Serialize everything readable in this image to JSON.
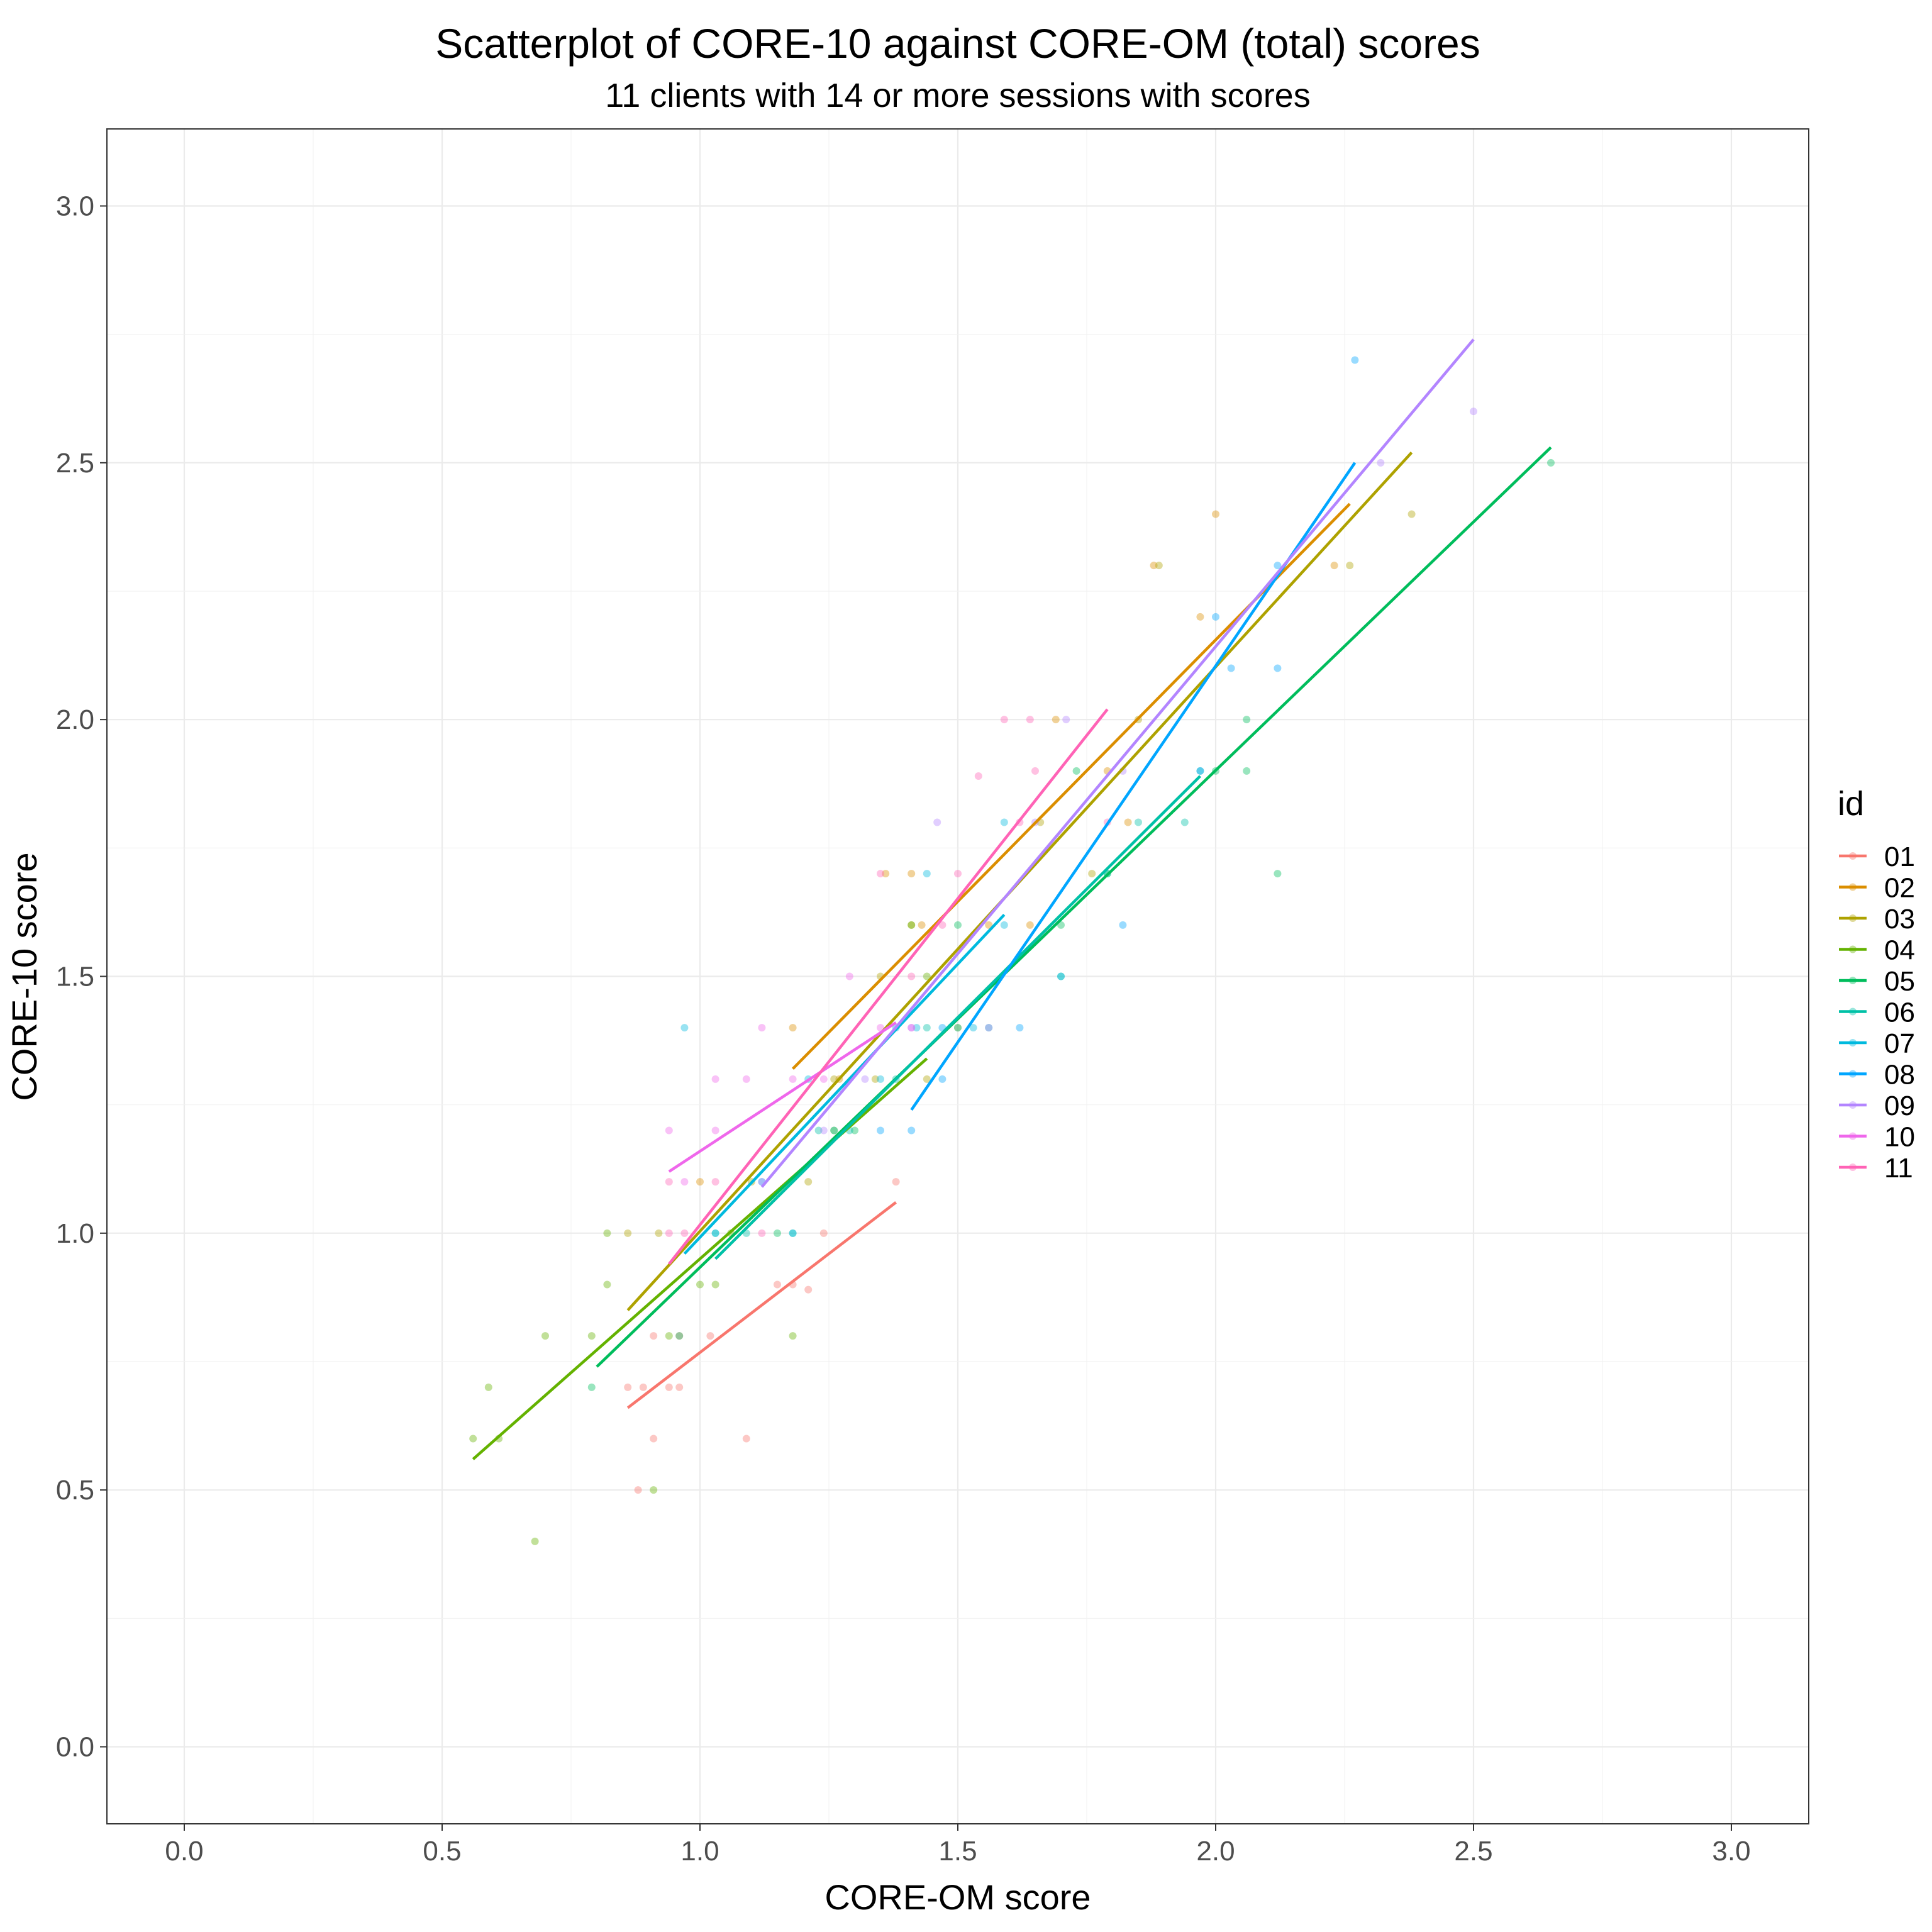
{
  "chart_data": {
    "type": "scatter",
    "title": "Scatterplot of CORE-10 against CORE-OM (total) scores",
    "subtitle": "11 clients with 14 or more sessions with scores",
    "xlabel": "CORE-OM score",
    "ylabel": "CORE-10 score",
    "xlim": [
      -0.15,
      3.15
    ],
    "ylim": [
      -0.15,
      3.15
    ],
    "x_ticks": [
      0.0,
      0.5,
      1.0,
      1.5,
      2.0,
      2.5,
      3.0
    ],
    "x_tick_labels": [
      "0.0",
      "0.5",
      "1.0",
      "1.5",
      "2.0",
      "2.5",
      "3.0"
    ],
    "y_ticks": [
      0.0,
      0.5,
      1.0,
      1.5,
      2.0,
      2.5,
      3.0
    ],
    "y_tick_labels": [
      "0.0",
      "0.5",
      "1.0",
      "1.5",
      "2.0",
      "2.5",
      "3.0"
    ],
    "grid": true,
    "legend": {
      "title": "id",
      "placement": "right"
    },
    "series": [
      {
        "name": "01",
        "color": "#F8766D",
        "line": [
          [
            0.86,
            0.66
          ],
          [
            1.38,
            1.06
          ]
        ],
        "points": [
          [
            0.86,
            0.7
          ],
          [
            0.88,
            0.5
          ],
          [
            0.89,
            0.7
          ],
          [
            0.91,
            0.6
          ],
          [
            0.91,
            0.8
          ],
          [
            0.94,
            0.7
          ],
          [
            0.96,
            0.7
          ],
          [
            0.96,
            0.8
          ],
          [
            1.02,
            0.8
          ],
          [
            1.09,
            0.6
          ],
          [
            1.15,
            0.9
          ],
          [
            1.18,
            0.9
          ],
          [
            1.21,
            0.89
          ],
          [
            1.24,
            1.0
          ],
          [
            1.38,
            1.1
          ]
        ]
      },
      {
        "name": "02",
        "color": "#DB8E00",
        "line": [
          [
            1.18,
            1.32
          ],
          [
            2.26,
            2.42
          ]
        ],
        "points": [
          [
            1.0,
            1.1
          ],
          [
            1.18,
            1.4
          ],
          [
            1.27,
            1.3
          ],
          [
            1.36,
            1.7
          ],
          [
            1.41,
            1.7
          ],
          [
            1.43,
            1.6
          ],
          [
            1.56,
            1.6
          ],
          [
            1.64,
            1.6
          ],
          [
            1.69,
            2.0
          ],
          [
            1.79,
            1.9
          ],
          [
            1.83,
            1.8
          ],
          [
            1.88,
            2.3
          ],
          [
            1.97,
            2.2
          ],
          [
            2.0,
            2.4
          ],
          [
            2.23,
            2.3
          ]
        ]
      },
      {
        "name": "03",
        "color": "#AEA200",
        "line": [
          [
            0.86,
            0.85
          ],
          [
            2.38,
            2.52
          ]
        ],
        "points": [
          [
            0.86,
            1.0
          ],
          [
            0.92,
            1.0
          ],
          [
            1.1,
            1.1
          ],
          [
            1.21,
            1.1
          ],
          [
            1.26,
            1.3
          ],
          [
            1.34,
            1.3
          ],
          [
            1.35,
            1.5
          ],
          [
            1.41,
            1.6
          ],
          [
            1.44,
            1.3
          ],
          [
            1.5,
            1.4
          ],
          [
            1.66,
            1.8
          ],
          [
            1.76,
            1.7
          ],
          [
            1.85,
            2.0
          ],
          [
            1.89,
            2.3
          ],
          [
            2.26,
            2.3
          ],
          [
            2.38,
            2.4
          ]
        ]
      },
      {
        "name": "04",
        "color": "#64B200",
        "line": [
          [
            0.56,
            0.56
          ],
          [
            1.44,
            1.34
          ]
        ],
        "points": [
          [
            0.56,
            0.6
          ],
          [
            0.59,
            0.7
          ],
          [
            0.61,
            0.6
          ],
          [
            0.68,
            0.4
          ],
          [
            0.7,
            0.8
          ],
          [
            0.79,
            0.8
          ],
          [
            0.82,
            1.0
          ],
          [
            0.82,
            0.9
          ],
          [
            0.91,
            0.5
          ],
          [
            0.94,
            0.8
          ],
          [
            1.0,
            0.9
          ],
          [
            1.03,
            0.9
          ],
          [
            1.06,
            1.0
          ],
          [
            1.18,
            0.8
          ],
          [
            1.26,
            1.2
          ],
          [
            1.41,
            1.6
          ],
          [
            1.44,
            1.5
          ]
        ]
      },
      {
        "name": "05",
        "color": "#00BD5C",
        "line": [
          [
            0.8,
            0.74
          ],
          [
            2.65,
            2.53
          ]
        ],
        "points": [
          [
            0.79,
            0.7
          ],
          [
            0.96,
            0.8
          ],
          [
            1.15,
            1.0
          ],
          [
            1.3,
            1.2
          ],
          [
            1.5,
            1.6
          ],
          [
            1.7,
            1.6
          ],
          [
            1.73,
            1.9
          ],
          [
            1.79,
            1.7
          ],
          [
            2.0,
            1.9
          ],
          [
            2.06,
            2.0
          ],
          [
            2.06,
            1.9
          ],
          [
            2.12,
            1.7
          ],
          [
            2.65,
            2.5
          ]
        ]
      },
      {
        "name": "06",
        "color": "#00C1A7",
        "line": [
          [
            1.03,
            0.95
          ],
          [
            1.97,
            1.89
          ]
        ],
        "points": [
          [
            1.03,
            1.0
          ],
          [
            1.09,
            1.0
          ],
          [
            1.18,
            1.0
          ],
          [
            1.23,
            1.2
          ],
          [
            1.26,
            1.2
          ],
          [
            1.29,
            1.2
          ],
          [
            1.38,
            1.3
          ],
          [
            1.44,
            1.4
          ],
          [
            1.5,
            1.4
          ],
          [
            1.56,
            1.4
          ],
          [
            1.7,
            1.5
          ],
          [
            1.79,
            1.7
          ],
          [
            1.85,
            1.8
          ],
          [
            1.94,
            1.8
          ],
          [
            1.97,
            1.9
          ]
        ]
      },
      {
        "name": "07",
        "color": "#00BADE",
        "line": [
          [
            0.97,
            0.96
          ],
          [
            1.59,
            1.62
          ]
        ],
        "points": [
          [
            0.97,
            1.4
          ],
          [
            1.03,
            1.0
          ],
          [
            1.12,
            1.1
          ],
          [
            1.18,
            1.0
          ],
          [
            1.21,
            1.3
          ],
          [
            1.35,
            1.3
          ],
          [
            1.38,
            1.4
          ],
          [
            1.42,
            1.4
          ],
          [
            1.44,
            1.7
          ],
          [
            1.53,
            1.4
          ],
          [
            1.59,
            1.6
          ],
          [
            1.59,
            1.8
          ],
          [
            1.7,
            1.5
          ]
        ]
      },
      {
        "name": "08",
        "color": "#00A6FF",
        "line": [
          [
            1.41,
            1.24
          ],
          [
            2.27,
            2.5
          ]
        ],
        "points": [
          [
            1.35,
            1.2
          ],
          [
            1.41,
            1.2
          ],
          [
            1.47,
            1.4
          ],
          [
            1.47,
            1.3
          ],
          [
            1.62,
            1.4
          ],
          [
            1.82,
            1.6
          ],
          [
            1.97,
            1.9
          ],
          [
            2.0,
            2.2
          ],
          [
            2.03,
            2.1
          ],
          [
            2.12,
            2.3
          ],
          [
            2.12,
            2.1
          ],
          [
            2.27,
            2.7
          ]
        ]
      },
      {
        "name": "09",
        "color": "#B385FF",
        "line": [
          [
            1.12,
            1.09
          ],
          [
            2.5,
            2.74
          ]
        ],
        "points": [
          [
            1.12,
            1.1
          ],
          [
            1.24,
            1.2
          ],
          [
            1.32,
            1.3
          ],
          [
            1.41,
            1.4
          ],
          [
            1.46,
            1.8
          ],
          [
            1.56,
            1.4
          ],
          [
            1.65,
            1.8
          ],
          [
            1.71,
            2.0
          ],
          [
            1.82,
            1.9
          ],
          [
            2.32,
            2.5
          ],
          [
            2.5,
            2.6
          ]
        ]
      },
      {
        "name": "10",
        "color": "#EF67EB",
        "line": [
          [
            0.94,
            1.12
          ],
          [
            1.38,
            1.41
          ]
        ],
        "points": [
          [
            0.94,
            1.2
          ],
          [
            0.97,
            1.1
          ],
          [
            1.03,
            1.2
          ],
          [
            1.03,
            1.3
          ],
          [
            1.09,
            1.3
          ],
          [
            1.12,
            1.4
          ],
          [
            1.18,
            1.3
          ],
          [
            1.24,
            1.3
          ],
          [
            1.29,
            1.5
          ],
          [
            1.35,
            1.4
          ],
          [
            1.41,
            1.4
          ]
        ]
      },
      {
        "name": "11",
        "color": "#FF63B6",
        "line": [
          [
            0.94,
            0.94
          ],
          [
            1.79,
            2.02
          ]
        ],
        "points": [
          [
            0.94,
            1.1
          ],
          [
            0.94,
            1.0
          ],
          [
            0.97,
            1.0
          ],
          [
            1.03,
            1.1
          ],
          [
            1.12,
            1.0
          ],
          [
            1.35,
            1.7
          ],
          [
            1.41,
            1.5
          ],
          [
            1.47,
            1.6
          ],
          [
            1.5,
            1.7
          ],
          [
            1.54,
            1.89
          ],
          [
            1.59,
            2.0
          ],
          [
            1.62,
            1.8
          ],
          [
            1.64,
            2.0
          ],
          [
            1.65,
            1.9
          ],
          [
            1.79,
            1.8
          ]
        ]
      }
    ]
  }
}
